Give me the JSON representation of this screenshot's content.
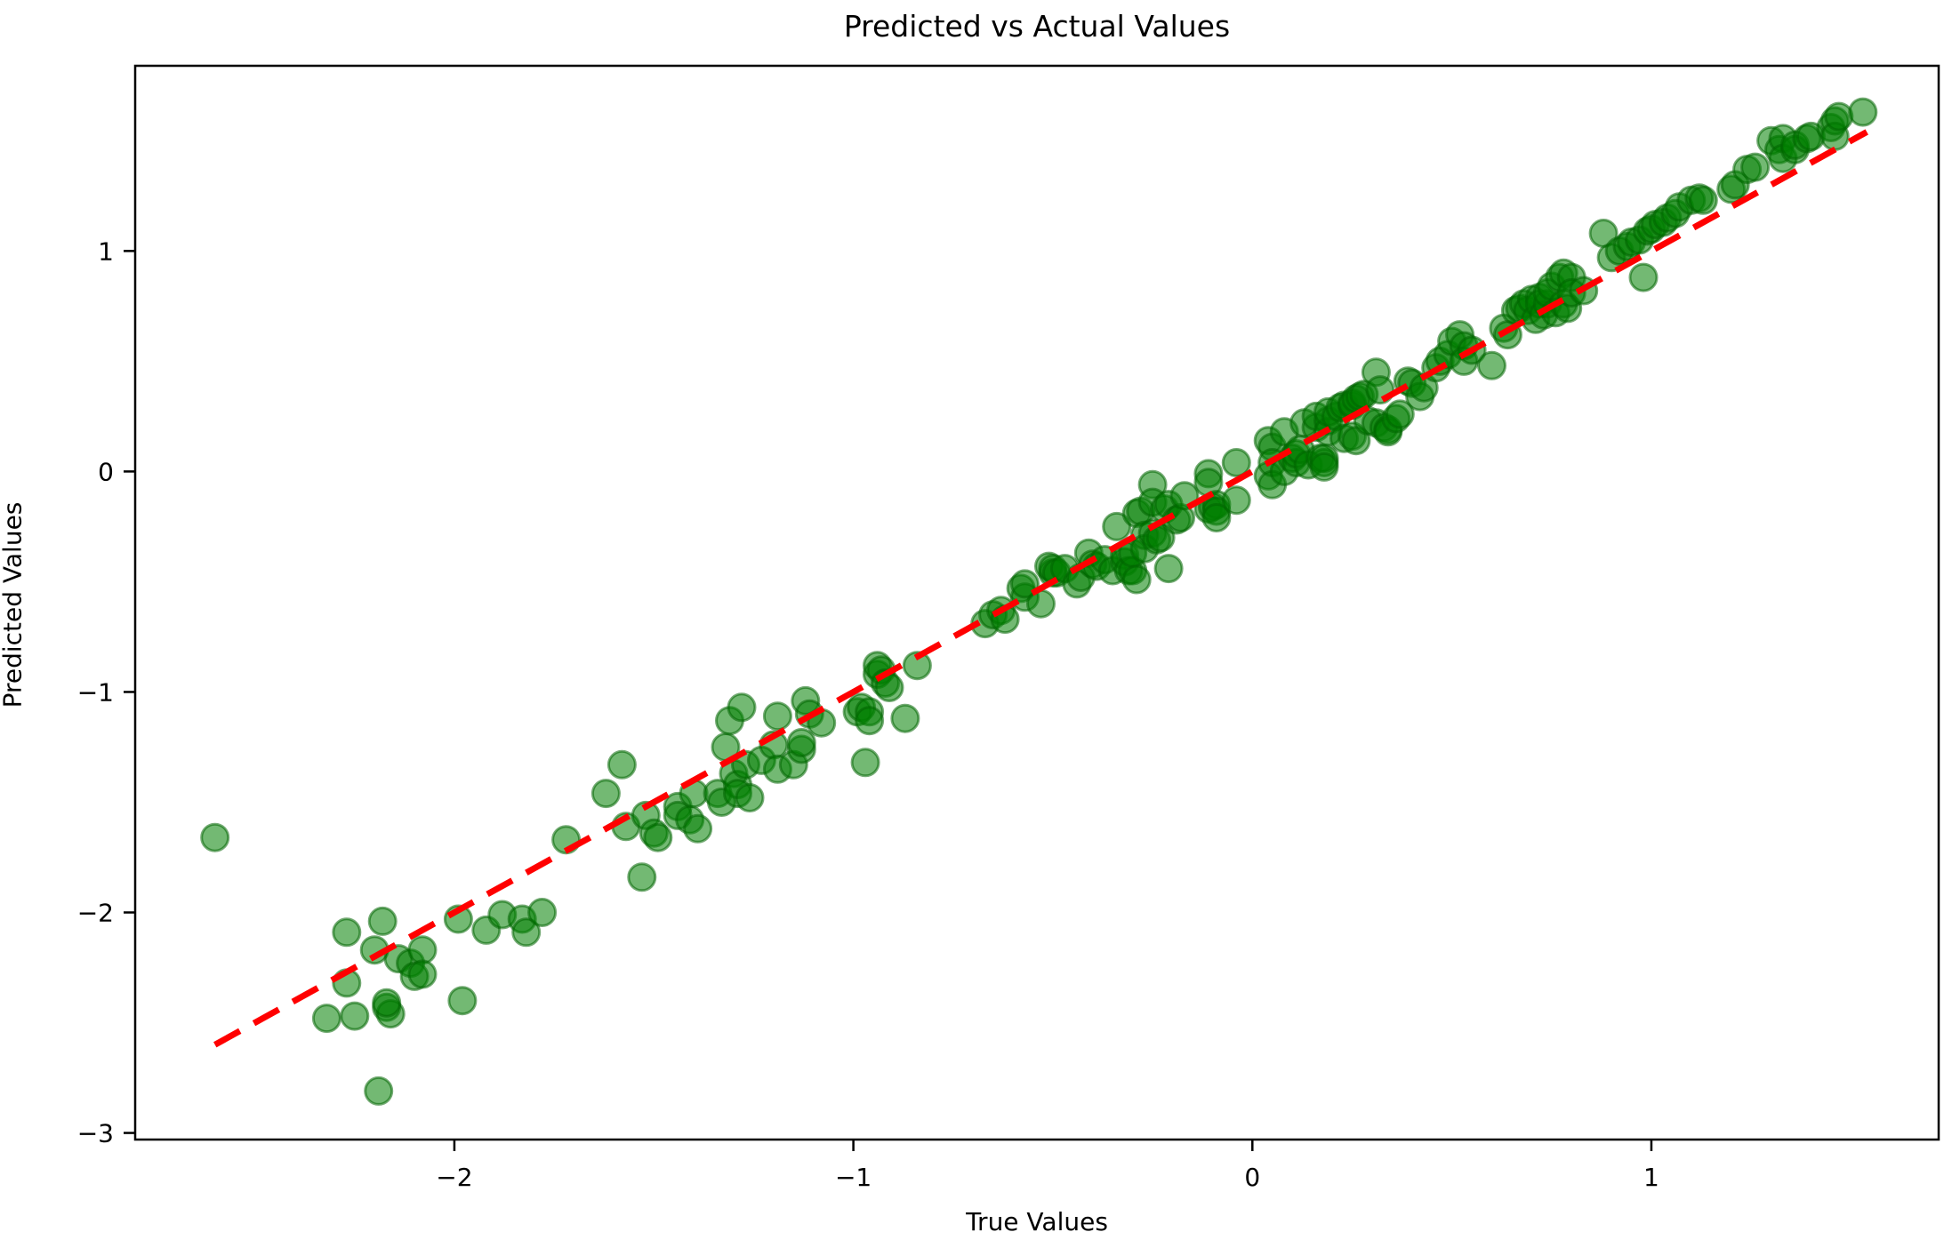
{
  "figure": {
    "background": "#ffffff",
    "text_color": "#000000"
  },
  "chart_data": {
    "type": "scatter",
    "title": "Predicted vs Actual Values",
    "xlabel": "True Values",
    "ylabel": "Predicted Values",
    "grid": false,
    "legend_position": "none",
    "xlim": [
      -2.8,
      1.72
    ],
    "ylim": [
      -3.03,
      1.84
    ],
    "xticks": [
      -2,
      -1,
      0,
      1
    ],
    "xtick_labels": [
      "−2",
      "−1",
      "0",
      "1"
    ],
    "yticks": [
      1,
      0,
      -1,
      -2,
      -3
    ],
    "ytick_labels": [
      "1",
      "0",
      "−1",
      "−2",
      "−3"
    ],
    "series": [
      {
        "name": "predictions",
        "marker": "circle",
        "color": "#008000",
        "edge_color": "#006400",
        "alpha": 0.55,
        "points": [
          [
            -2.6,
            -1.66
          ],
          [
            -2.19,
            -2.81
          ],
          [
            -2.32,
            -2.48
          ],
          [
            -2.27,
            -2.32
          ],
          [
            -2.27,
            -2.09
          ],
          [
            -2.25,
            -2.47
          ],
          [
            -2.2,
            -2.17
          ],
          [
            -2.18,
            -2.04
          ],
          [
            -2.17,
            -2.43
          ],
          [
            -2.16,
            -2.46
          ],
          [
            -2.17,
            -2.41
          ],
          [
            -2.14,
            -2.21
          ],
          [
            -2.11,
            -2.23
          ],
          [
            -2.1,
            -2.29
          ],
          [
            -2.08,
            -2.17
          ],
          [
            -2.08,
            -2.28
          ],
          [
            -1.99,
            -2.03
          ],
          [
            -1.98,
            -2.4
          ],
          [
            -1.92,
            -2.08
          ],
          [
            -1.88,
            -2.01
          ],
          [
            -1.83,
            -2.03
          ],
          [
            -1.82,
            -2.09
          ],
          [
            -1.78,
            -2.0
          ],
          [
            -1.72,
            -1.67
          ],
          [
            -1.62,
            -1.46
          ],
          [
            -1.58,
            -1.33
          ],
          [
            -1.57,
            -1.61
          ],
          [
            -1.53,
            -1.84
          ],
          [
            -1.52,
            -1.56
          ],
          [
            -1.5,
            -1.64
          ],
          [
            -1.49,
            -1.66
          ],
          [
            -1.44,
            -1.52
          ],
          [
            -1.44,
            -1.56
          ],
          [
            -1.41,
            -1.58
          ],
          [
            -1.4,
            -1.46
          ],
          [
            -1.39,
            -1.62
          ],
          [
            -1.34,
            -1.46
          ],
          [
            -1.33,
            -1.5
          ],
          [
            -1.32,
            -1.25
          ],
          [
            -1.31,
            -1.13
          ],
          [
            -1.3,
            -1.37
          ],
          [
            -1.29,
            -1.42
          ],
          [
            -1.29,
            -1.46
          ],
          [
            -1.28,
            -1.07
          ],
          [
            -1.27,
            -1.33
          ],
          [
            -1.26,
            -1.48
          ],
          [
            -1.23,
            -1.31
          ],
          [
            -1.2,
            -1.24
          ],
          [
            -1.19,
            -1.11
          ],
          [
            -1.19,
            -1.35
          ],
          [
            -1.15,
            -1.33
          ],
          [
            -1.13,
            -1.26
          ],
          [
            -1.13,
            -1.23
          ],
          [
            -1.12,
            -1.04
          ],
          [
            -1.11,
            -1.1
          ],
          [
            -1.08,
            -1.14
          ],
          [
            -0.99,
            -1.09
          ],
          [
            -0.98,
            -1.07
          ],
          [
            -0.97,
            -1.32
          ],
          [
            -0.96,
            -1.09
          ],
          [
            -0.96,
            -1.13
          ],
          [
            -0.94,
            -0.92
          ],
          [
            -0.94,
            -0.88
          ],
          [
            -0.93,
            -0.9
          ],
          [
            -0.92,
            -0.96
          ],
          [
            -0.91,
            -0.98
          ],
          [
            -0.87,
            -1.12
          ],
          [
            -0.84,
            -0.88
          ],
          [
            -0.67,
            -0.69
          ],
          [
            -0.65,
            -0.65
          ],
          [
            -0.63,
            -0.63
          ],
          [
            -0.62,
            -0.67
          ],
          [
            -0.58,
            -0.53
          ],
          [
            -0.57,
            -0.57
          ],
          [
            -0.57,
            -0.51
          ],
          [
            -0.53,
            -0.6
          ],
          [
            -0.51,
            -0.43
          ],
          [
            -0.5,
            -0.46
          ],
          [
            -0.5,
            -0.44
          ],
          [
            -0.49,
            -0.46
          ],
          [
            -0.47,
            -0.44
          ],
          [
            -0.44,
            -0.51
          ],
          [
            -0.43,
            -0.48
          ],
          [
            -0.41,
            -0.37
          ],
          [
            -0.4,
            -0.42
          ],
          [
            -0.39,
            -0.43
          ],
          [
            -0.37,
            -0.4
          ],
          [
            -0.35,
            -0.45
          ],
          [
            -0.34,
            -0.25
          ],
          [
            -0.32,
            -0.41
          ],
          [
            -0.32,
            -0.38
          ],
          [
            -0.31,
            -0.45
          ],
          [
            -0.3,
            -0.45
          ],
          [
            -0.3,
            -0.37
          ],
          [
            -0.29,
            -0.19
          ],
          [
            -0.29,
            -0.49
          ],
          [
            -0.28,
            -0.18
          ],
          [
            -0.27,
            -0.29
          ],
          [
            -0.27,
            -0.35
          ],
          [
            -0.25,
            -0.28
          ],
          [
            -0.25,
            -0.06
          ],
          [
            -0.25,
            -0.14
          ],
          [
            -0.24,
            -0.31
          ],
          [
            -0.23,
            -0.3
          ],
          [
            -0.22,
            -0.17
          ],
          [
            -0.21,
            -0.44
          ],
          [
            -0.21,
            -0.15
          ],
          [
            -0.19,
            -0.22
          ],
          [
            -0.18,
            -0.21
          ],
          [
            -0.17,
            -0.11
          ],
          [
            -0.11,
            -0.17
          ],
          [
            -0.11,
            -0.01
          ],
          [
            -0.11,
            -0.05
          ],
          [
            -0.1,
            -0.16
          ],
          [
            -0.09,
            -0.15
          ],
          [
            -0.09,
            -0.18
          ],
          [
            -0.09,
            -0.21
          ],
          [
            -0.04,
            0.04
          ],
          [
            -0.04,
            -0.13
          ],
          [
            0.04,
            0.14
          ],
          [
            0.04,
            -0.02
          ],
          [
            0.05,
            0.11
          ],
          [
            0.05,
            0.04
          ],
          [
            0.05,
            -0.06
          ],
          [
            0.08,
            0.0
          ],
          [
            0.08,
            0.18
          ],
          [
            0.1,
            0.06
          ],
          [
            0.11,
            0.04
          ],
          [
            0.11,
            0.08
          ],
          [
            0.12,
            0.1
          ],
          [
            0.13,
            0.22
          ],
          [
            0.14,
            0.03
          ],
          [
            0.16,
            0.2
          ],
          [
            0.16,
            0.25
          ],
          [
            0.17,
            0.06
          ],
          [
            0.18,
            0.04
          ],
          [
            0.18,
            0.06
          ],
          [
            0.18,
            0.02
          ],
          [
            0.19,
            0.23
          ],
          [
            0.19,
            0.18
          ],
          [
            0.19,
            0.27
          ],
          [
            0.21,
            0.25
          ],
          [
            0.22,
            0.29
          ],
          [
            0.23,
            0.15
          ],
          [
            0.23,
            0.3
          ],
          [
            0.25,
            0.3
          ],
          [
            0.25,
            0.31
          ],
          [
            0.25,
            0.16
          ],
          [
            0.26,
            0.33
          ],
          [
            0.26,
            0.14
          ],
          [
            0.27,
            0.34
          ],
          [
            0.28,
            0.35
          ],
          [
            0.29,
            0.23
          ],
          [
            0.31,
            0.22
          ],
          [
            0.31,
            0.45
          ],
          [
            0.32,
            0.37
          ],
          [
            0.33,
            0.2
          ],
          [
            0.34,
            0.19
          ],
          [
            0.34,
            0.18
          ],
          [
            0.36,
            0.24
          ],
          [
            0.37,
            0.26
          ],
          [
            0.39,
            0.41
          ],
          [
            0.4,
            0.4
          ],
          [
            0.42,
            0.34
          ],
          [
            0.43,
            0.38
          ],
          [
            0.46,
            0.47
          ],
          [
            0.47,
            0.5
          ],
          [
            0.49,
            0.53
          ],
          [
            0.5,
            0.59
          ],
          [
            0.52,
            0.62
          ],
          [
            0.53,
            0.57
          ],
          [
            0.53,
            0.5
          ],
          [
            0.55,
            0.55
          ],
          [
            0.6,
            0.48
          ],
          [
            0.63,
            0.65
          ],
          [
            0.64,
            0.62
          ],
          [
            0.66,
            0.73
          ],
          [
            0.67,
            0.74
          ],
          [
            0.68,
            0.76
          ],
          [
            0.69,
            0.73
          ],
          [
            0.7,
            0.78
          ],
          [
            0.71,
            0.69
          ],
          [
            0.72,
            0.79
          ],
          [
            0.72,
            0.76
          ],
          [
            0.73,
            0.71
          ],
          [
            0.74,
            0.76
          ],
          [
            0.74,
            0.81
          ],
          [
            0.75,
            0.84
          ],
          [
            0.76,
            0.72
          ],
          [
            0.77,
            0.88
          ],
          [
            0.78,
            0.9
          ],
          [
            0.78,
            0.76
          ],
          [
            0.79,
            0.74
          ],
          [
            0.8,
            0.88
          ],
          [
            0.8,
            0.81
          ],
          [
            0.83,
            0.82
          ],
          [
            0.88,
            1.08
          ],
          [
            0.9,
            0.97
          ],
          [
            0.92,
            1.0
          ],
          [
            0.94,
            1.02
          ],
          [
            0.95,
            1.04
          ],
          [
            0.97,
            1.05
          ],
          [
            0.98,
            0.88
          ],
          [
            0.99,
            1.09
          ],
          [
            1.0,
            1.1
          ],
          [
            1.01,
            1.12
          ],
          [
            1.03,
            1.13
          ],
          [
            1.04,
            1.15
          ],
          [
            1.06,
            1.17
          ],
          [
            1.07,
            1.2
          ],
          [
            1.1,
            1.23
          ],
          [
            1.12,
            1.24
          ],
          [
            1.13,
            1.23
          ],
          [
            1.2,
            1.28
          ],
          [
            1.21,
            1.3
          ],
          [
            1.24,
            1.37
          ],
          [
            1.26,
            1.38
          ],
          [
            1.3,
            1.5
          ],
          [
            1.32,
            1.46
          ],
          [
            1.33,
            1.51
          ],
          [
            1.33,
            1.42
          ],
          [
            1.36,
            1.46
          ],
          [
            1.36,
            1.48
          ],
          [
            1.39,
            1.51
          ],
          [
            1.4,
            1.52
          ],
          [
            1.45,
            1.56
          ],
          [
            1.46,
            1.59
          ],
          [
            1.46,
            1.52
          ],
          [
            1.47,
            1.61
          ],
          [
            1.53,
            1.63
          ]
        ]
      }
    ],
    "reference_line": {
      "name": "identity-line",
      "style": "dashed",
      "color": "#ff0000",
      "width": 7,
      "from": [
        -2.6,
        -2.6
      ],
      "to": [
        1.54,
        1.54
      ]
    }
  }
}
